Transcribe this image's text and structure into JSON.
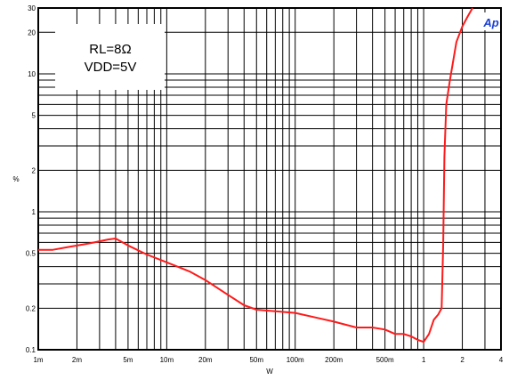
{
  "chart_data": {
    "type": "line",
    "title": "",
    "xlabel": "W",
    "ylabel": "%",
    "x_scale": "log",
    "y_scale": "log",
    "xlim": [
      0.001,
      4
    ],
    "ylim": [
      0.1,
      30
    ],
    "grid": true,
    "x_ticks": [
      {
        "value": 0.001,
        "label": "1m"
      },
      {
        "value": 0.002,
        "label": "2m"
      },
      {
        "value": 0.005,
        "label": "5m"
      },
      {
        "value": 0.01,
        "label": "10m"
      },
      {
        "value": 0.02,
        "label": "20m"
      },
      {
        "value": 0.05,
        "label": "50m"
      },
      {
        "value": 0.1,
        "label": "100m"
      },
      {
        "value": 0.2,
        "label": "200m"
      },
      {
        "value": 0.5,
        "label": "500m"
      },
      {
        "value": 1,
        "label": "1"
      },
      {
        "value": 2,
        "label": "2"
      },
      {
        "value": 4,
        "label": "4"
      }
    ],
    "y_ticks": [
      {
        "value": 0.1,
        "label": "0.1"
      },
      {
        "value": 0.2,
        "label": "0.2"
      },
      {
        "value": 0.5,
        "label": "0.5"
      },
      {
        "value": 1,
        "label": "1"
      },
      {
        "value": 2,
        "label": "2"
      },
      {
        "value": 5,
        "label": "5"
      },
      {
        "value": 10,
        "label": "10"
      },
      {
        "value": 20,
        "label": "20"
      },
      {
        "value": 30,
        "label": "30"
      }
    ],
    "annotation": [
      "RL=8Ω",
      "VDD=5V"
    ],
    "series": [
      {
        "color": "#ff1a1a",
        "x": [
          0.001,
          0.0013,
          0.0018,
          0.0025,
          0.0035,
          0.004,
          0.005,
          0.007,
          0.01,
          0.015,
          0.02,
          0.03,
          0.04,
          0.05,
          0.07,
          0.1,
          0.15,
          0.2,
          0.3,
          0.4,
          0.5,
          0.6,
          0.7,
          0.8,
          0.9,
          1.0,
          1.1,
          1.2,
          1.3,
          1.38,
          1.42,
          1.45,
          1.5,
          1.6,
          1.8,
          2.0,
          2.2,
          2.4
        ],
        "y": [
          0.53,
          0.53,
          0.56,
          0.59,
          0.63,
          0.64,
          0.57,
          0.49,
          0.43,
          0.37,
          0.32,
          0.25,
          0.21,
          0.195,
          0.19,
          0.185,
          0.17,
          0.16,
          0.145,
          0.145,
          0.14,
          0.13,
          0.13,
          0.125,
          0.118,
          0.114,
          0.13,
          0.165,
          0.18,
          0.2,
          0.6,
          2.5,
          6,
          9,
          17,
          22,
          26,
          30
        ]
      }
    ]
  },
  "logo": {
    "text": "Ap",
    "color": "#1a3fd6"
  }
}
